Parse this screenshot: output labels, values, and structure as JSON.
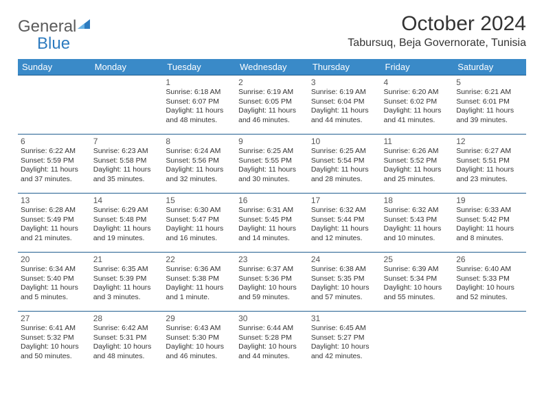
{
  "brand": {
    "part1": "General",
    "part2": "Blue"
  },
  "title": "October 2024",
  "location": "Tabursuq, Beja Governorate, Tunisia",
  "header_bg": "#3a8ac8",
  "row_border": "#1f5d8f",
  "days_of_week": [
    "Sunday",
    "Monday",
    "Tuesday",
    "Wednesday",
    "Thursday",
    "Friday",
    "Saturday"
  ],
  "weeks": [
    [
      null,
      null,
      {
        "n": "1",
        "sr": "Sunrise: 6:18 AM",
        "ss": "Sunset: 6:07 PM",
        "dl": "Daylight: 11 hours and 48 minutes."
      },
      {
        "n": "2",
        "sr": "Sunrise: 6:19 AM",
        "ss": "Sunset: 6:05 PM",
        "dl": "Daylight: 11 hours and 46 minutes."
      },
      {
        "n": "3",
        "sr": "Sunrise: 6:19 AM",
        "ss": "Sunset: 6:04 PM",
        "dl": "Daylight: 11 hours and 44 minutes."
      },
      {
        "n": "4",
        "sr": "Sunrise: 6:20 AM",
        "ss": "Sunset: 6:02 PM",
        "dl": "Daylight: 11 hours and 41 minutes."
      },
      {
        "n": "5",
        "sr": "Sunrise: 6:21 AM",
        "ss": "Sunset: 6:01 PM",
        "dl": "Daylight: 11 hours and 39 minutes."
      }
    ],
    [
      {
        "n": "6",
        "sr": "Sunrise: 6:22 AM",
        "ss": "Sunset: 5:59 PM",
        "dl": "Daylight: 11 hours and 37 minutes."
      },
      {
        "n": "7",
        "sr": "Sunrise: 6:23 AM",
        "ss": "Sunset: 5:58 PM",
        "dl": "Daylight: 11 hours and 35 minutes."
      },
      {
        "n": "8",
        "sr": "Sunrise: 6:24 AM",
        "ss": "Sunset: 5:56 PM",
        "dl": "Daylight: 11 hours and 32 minutes."
      },
      {
        "n": "9",
        "sr": "Sunrise: 6:25 AM",
        "ss": "Sunset: 5:55 PM",
        "dl": "Daylight: 11 hours and 30 minutes."
      },
      {
        "n": "10",
        "sr": "Sunrise: 6:25 AM",
        "ss": "Sunset: 5:54 PM",
        "dl": "Daylight: 11 hours and 28 minutes."
      },
      {
        "n": "11",
        "sr": "Sunrise: 6:26 AM",
        "ss": "Sunset: 5:52 PM",
        "dl": "Daylight: 11 hours and 25 minutes."
      },
      {
        "n": "12",
        "sr": "Sunrise: 6:27 AM",
        "ss": "Sunset: 5:51 PM",
        "dl": "Daylight: 11 hours and 23 minutes."
      }
    ],
    [
      {
        "n": "13",
        "sr": "Sunrise: 6:28 AM",
        "ss": "Sunset: 5:49 PM",
        "dl": "Daylight: 11 hours and 21 minutes."
      },
      {
        "n": "14",
        "sr": "Sunrise: 6:29 AM",
        "ss": "Sunset: 5:48 PM",
        "dl": "Daylight: 11 hours and 19 minutes."
      },
      {
        "n": "15",
        "sr": "Sunrise: 6:30 AM",
        "ss": "Sunset: 5:47 PM",
        "dl": "Daylight: 11 hours and 16 minutes."
      },
      {
        "n": "16",
        "sr": "Sunrise: 6:31 AM",
        "ss": "Sunset: 5:45 PM",
        "dl": "Daylight: 11 hours and 14 minutes."
      },
      {
        "n": "17",
        "sr": "Sunrise: 6:32 AM",
        "ss": "Sunset: 5:44 PM",
        "dl": "Daylight: 11 hours and 12 minutes."
      },
      {
        "n": "18",
        "sr": "Sunrise: 6:32 AM",
        "ss": "Sunset: 5:43 PM",
        "dl": "Daylight: 11 hours and 10 minutes."
      },
      {
        "n": "19",
        "sr": "Sunrise: 6:33 AM",
        "ss": "Sunset: 5:42 PM",
        "dl": "Daylight: 11 hours and 8 minutes."
      }
    ],
    [
      {
        "n": "20",
        "sr": "Sunrise: 6:34 AM",
        "ss": "Sunset: 5:40 PM",
        "dl": "Daylight: 11 hours and 5 minutes."
      },
      {
        "n": "21",
        "sr": "Sunrise: 6:35 AM",
        "ss": "Sunset: 5:39 PM",
        "dl": "Daylight: 11 hours and 3 minutes."
      },
      {
        "n": "22",
        "sr": "Sunrise: 6:36 AM",
        "ss": "Sunset: 5:38 PM",
        "dl": "Daylight: 11 hours and 1 minute."
      },
      {
        "n": "23",
        "sr": "Sunrise: 6:37 AM",
        "ss": "Sunset: 5:36 PM",
        "dl": "Daylight: 10 hours and 59 minutes."
      },
      {
        "n": "24",
        "sr": "Sunrise: 6:38 AM",
        "ss": "Sunset: 5:35 PM",
        "dl": "Daylight: 10 hours and 57 minutes."
      },
      {
        "n": "25",
        "sr": "Sunrise: 6:39 AM",
        "ss": "Sunset: 5:34 PM",
        "dl": "Daylight: 10 hours and 55 minutes."
      },
      {
        "n": "26",
        "sr": "Sunrise: 6:40 AM",
        "ss": "Sunset: 5:33 PM",
        "dl": "Daylight: 10 hours and 52 minutes."
      }
    ],
    [
      {
        "n": "27",
        "sr": "Sunrise: 6:41 AM",
        "ss": "Sunset: 5:32 PM",
        "dl": "Daylight: 10 hours and 50 minutes."
      },
      {
        "n": "28",
        "sr": "Sunrise: 6:42 AM",
        "ss": "Sunset: 5:31 PM",
        "dl": "Daylight: 10 hours and 48 minutes."
      },
      {
        "n": "29",
        "sr": "Sunrise: 6:43 AM",
        "ss": "Sunset: 5:30 PM",
        "dl": "Daylight: 10 hours and 46 minutes."
      },
      {
        "n": "30",
        "sr": "Sunrise: 6:44 AM",
        "ss": "Sunset: 5:28 PM",
        "dl": "Daylight: 10 hours and 44 minutes."
      },
      {
        "n": "31",
        "sr": "Sunrise: 6:45 AM",
        "ss": "Sunset: 5:27 PM",
        "dl": "Daylight: 10 hours and 42 minutes."
      },
      null,
      null
    ]
  ]
}
